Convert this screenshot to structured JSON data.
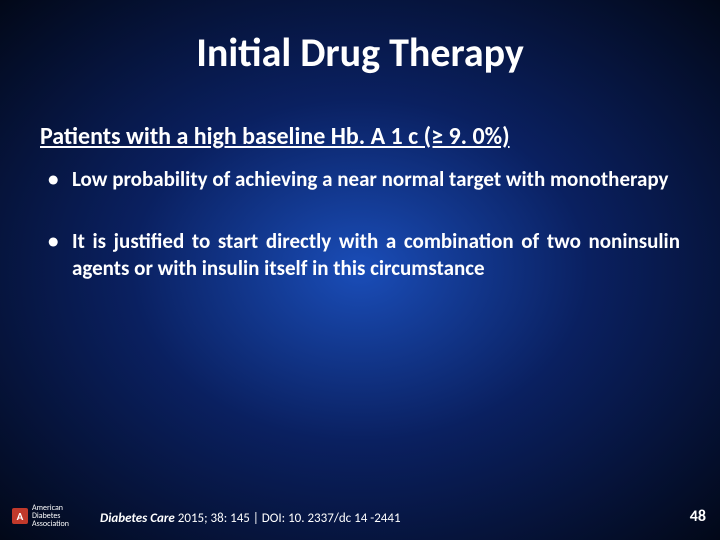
{
  "slide": {
    "title": "Initial Drug Therapy",
    "subtitle": "Patients with a high baseline Hb. A 1 c (≥ 9. 0%)",
    "bullets": [
      "Low probability of achieving a near normal target with monotherapy",
      "It is justified to start directly with a combination of two noninsulin agents or with insulin itself in this circumstance"
    ],
    "logo": {
      "mark": "A",
      "line1": "American",
      "line2": "Diabetes",
      "line3": "Association"
    },
    "citation_bold": "Diabetes Care ",
    "citation_rest": "2015; 38: 145 | DOI: 10. 2337/dc 14 -2441",
    "page_number": "48",
    "colors": {
      "bg_center": "#1a4db8",
      "bg_mid": "#0a2060",
      "bg_edge": "#020818",
      "text": "#ffffff",
      "logo_red": "#c0392b"
    },
    "typography": {
      "title_fontsize": 40,
      "subtitle_fontsize": 24,
      "bullet_fontsize": 21,
      "citation_fontsize": 13,
      "pagenum_fontsize": 16
    }
  }
}
